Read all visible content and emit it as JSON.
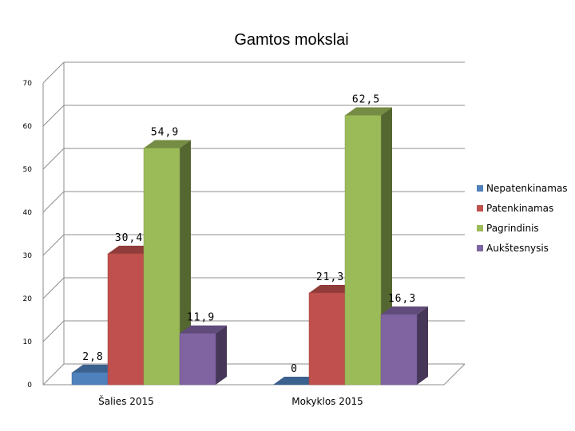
{
  "chart_data": {
    "type": "bar",
    "title": "Gamtos mokslai",
    "categories": [
      "Šalies 2015",
      "Mokyklos 2015"
    ],
    "series": [
      {
        "name": "Nepatenkinamas",
        "values": [
          2.8,
          0
        ],
        "labels": [
          "2,8",
          "0"
        ],
        "color": "#4f81bd"
      },
      {
        "name": "Patenkinamas",
        "values": [
          30.4,
          21.3
        ],
        "labels": [
          "30,4",
          "21,3"
        ],
        "color": "#c0504d"
      },
      {
        "name": "Pagrindinis",
        "values": [
          54.9,
          62.5
        ],
        "labels": [
          "54,9",
          "62,5"
        ],
        "color": "#9bbb59"
      },
      {
        "name": "Aukštesnysis",
        "values": [
          11.9,
          16.3
        ],
        "labels": [
          "11,9",
          "16,3"
        ],
        "color": "#8064a2"
      }
    ],
    "ylim": [
      0,
      70
    ],
    "yticks": [
      "0",
      "10",
      "20",
      "30",
      "40",
      "50",
      "60",
      "70"
    ],
    "grid": true,
    "legend": "right",
    "style": "3d-clustered-column"
  }
}
